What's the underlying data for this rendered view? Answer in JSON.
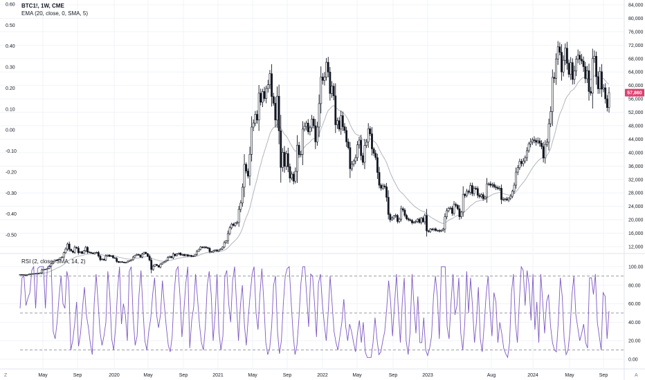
{
  "header": {
    "symbol": "BTC1!, 1W, CME",
    "ema_label": "EMA (20, close, 0, SMA, 5)"
  },
  "rsi": {
    "label": "RSI (2, close, SMA, 14, 2)",
    "axis_ticks": [
      "100.00",
      "80.00",
      "60.00",
      "40.00",
      "20.00",
      "0.00"
    ],
    "levels": [
      90,
      50,
      10
    ],
    "line_color": "#7e57c2",
    "values": [
      55,
      88,
      90,
      58,
      66,
      72,
      96,
      100,
      55,
      98,
      100,
      100,
      100,
      55,
      100,
      100,
      100,
      30,
      22,
      40,
      68,
      90,
      60,
      55,
      95,
      84,
      10,
      20,
      38,
      62,
      14,
      28,
      55,
      78,
      48,
      35,
      18,
      5,
      60,
      92,
      62,
      30,
      15,
      25,
      40,
      95,
      70,
      22,
      10,
      35,
      75,
      100,
      38,
      60,
      48,
      20,
      95,
      100,
      45,
      15,
      25,
      70,
      96,
      55,
      20,
      10,
      30,
      44,
      70,
      88,
      48,
      34,
      48,
      85,
      58,
      35,
      15,
      8,
      25,
      70,
      96,
      100,
      68,
      24,
      52,
      82,
      100,
      12,
      42,
      56,
      92,
      66,
      38,
      18,
      10,
      35,
      80,
      95,
      70,
      20,
      48,
      92,
      30,
      10,
      25,
      90,
      96,
      60,
      40,
      85,
      100,
      60,
      20,
      58,
      80,
      38,
      15,
      45,
      70,
      92,
      100,
      50,
      32,
      70,
      98,
      62,
      18,
      5,
      12,
      35,
      80,
      90,
      30,
      6,
      20,
      60,
      90,
      98,
      100,
      62,
      28,
      5,
      15,
      45,
      82,
      100,
      100,
      68,
      35,
      92,
      90,
      60,
      24,
      82,
      92,
      60,
      38,
      20,
      50,
      90,
      60,
      30,
      18,
      10,
      25,
      40,
      65,
      35,
      20,
      38,
      30,
      18,
      8,
      28,
      42,
      18,
      40,
      8,
      2,
      2,
      2,
      18,
      45,
      22,
      5,
      8,
      20,
      30,
      55,
      85,
      62,
      25,
      58,
      92,
      52,
      18,
      62,
      88,
      20,
      5,
      30,
      92,
      58,
      28,
      68,
      18,
      18,
      45,
      10,
      4,
      12,
      25,
      68,
      90,
      68,
      22,
      100,
      100,
      100,
      35,
      22,
      62,
      92,
      48,
      58,
      88,
      28,
      10,
      38,
      95,
      50,
      88,
      58,
      18,
      40,
      78,
      22,
      8,
      38,
      70,
      90,
      52,
      25,
      72,
      62,
      18,
      40,
      28,
      12,
      6,
      2,
      18,
      72,
      92,
      40,
      18,
      62,
      100,
      96,
      58,
      96,
      80,
      42,
      92,
      32,
      62,
      18,
      92,
      62,
      28,
      62,
      70,
      36,
      18,
      10,
      8,
      40,
      88,
      68,
      22,
      5,
      10,
      30,
      70,
      90,
      48,
      34,
      20,
      28,
      38,
      18,
      12,
      88,
      88,
      70,
      92,
      40,
      25,
      10,
      72,
      68,
      22,
      52
    ]
  },
  "right_axis": {
    "price_ticks": [
      "84,000",
      "80,000",
      "76,000",
      "72,000",
      "68,000",
      "64,000",
      "60,000",
      "56,000",
      "52,000",
      "48,000",
      "44,000",
      "40,000",
      "36,000",
      "32,000",
      "28,000",
      "24,000",
      "20,000",
      "16,000",
      "12,000"
    ],
    "current_price": "57,860",
    "current_price_color": "#e03e6e"
  },
  "left_axis": {
    "ticks": [
      "0.60",
      "0.50",
      "0.40",
      "0.30",
      "0.20",
      "0.10",
      "0.00",
      "-0.10",
      "-0.20",
      "-0.30",
      "-0.40",
      "-0.50"
    ]
  },
  "time_axis": {
    "labels": [
      "May",
      "Sep",
      "2020",
      "May",
      "Sep",
      "2021",
      "May",
      "Sep",
      "2022",
      "May",
      "Sep",
      "2023",
      "Aug",
      "2024",
      "May",
      "Sep"
    ],
    "corner_left": "Z",
    "corner_right": "A"
  },
  "chart_data": {
    "type": "candlestick-ohlc",
    "title": "BTC1!, 1W, CME",
    "timeframe": "1W",
    "x_range": [
      "2019-01",
      "2024-09"
    ],
    "ylim": [
      12000,
      84000
    ],
    "overlay": "EMA (20, close, 0, SMA, 5)",
    "overlay_color": "#b2b5be",
    "bar_color": "#131722",
    "closes_weekly": [
      3700,
      3650,
      3600,
      3580,
      3620,
      3900,
      3850,
      3970,
      4000,
      4100,
      4050,
      4200,
      5100,
      5200,
      5300,
      5500,
      6200,
      6900,
      7500,
      8000,
      7900,
      8200,
      8700,
      8900,
      10200,
      11300,
      12800,
      11200,
      10700,
      10300,
      11800,
      11600,
      10200,
      10500,
      10000,
      10800,
      11800,
      10400,
      10300,
      10100,
      9900,
      10200,
      10300,
      9200,
      8100,
      8300,
      8000,
      9200,
      9500,
      9100,
      9300,
      8700,
      8500,
      7600,
      7300,
      7500,
      7400,
      7200,
      7300,
      7700,
      7800,
      8100,
      8900,
      9400,
      9700,
      9500,
      8900,
      9800,
      10300,
      9900,
      9200,
      8000,
      5200,
      6200,
      6700,
      6400,
      5900,
      6800,
      7200,
      7500,
      7900,
      8800,
      9100,
      8700,
      9800,
      9300,
      9800,
      10100,
      9500,
      9700,
      9300,
      9600,
      9200,
      9400,
      9100,
      9200,
      9700,
      10600,
      11200,
      11900,
      11700,
      11900,
      11700,
      11500,
      10500,
      10400,
      10800,
      11000,
      10700,
      11000,
      11300,
      11900,
      13200,
      13700,
      15900,
      17600,
      18700,
      18300,
      19000,
      19200,
      23100,
      25000,
      29700,
      36500,
      34500,
      33000,
      39500,
      47600,
      48800,
      51400,
      49700,
      57700,
      55000,
      58200,
      56100,
      59100,
      60200,
      63500,
      56700,
      54700,
      49700,
      56800,
      46500,
      35600,
      40100,
      35900,
      39700,
      35800,
      32400,
      33600,
      31500,
      34400,
      42200,
      39400,
      39500,
      47000,
      47800,
      48800,
      46200,
      47400,
      50000,
      48000,
      43200,
      47600,
      54600,
      62500,
      61500,
      62500,
      66900,
      64000,
      57600,
      59800,
      56900,
      48300,
      49500,
      47000,
      51000,
      47700,
      46600,
      43200,
      41500,
      35200,
      36600,
      37500,
      38500,
      42300,
      43700,
      39100,
      37100,
      42100,
      43200,
      47100,
      45600,
      41100,
      39800,
      38500,
      34100,
      30300,
      29400,
      30100,
      29800,
      26700,
      21600,
      20000,
      20500,
      21100,
      21300,
      19500,
      20200,
      23300,
      22900,
      21300,
      20300,
      20000,
      19800,
      19100,
      19300,
      19500,
      20200,
      19200,
      20500,
      19400,
      21300,
      16700,
      16500,
      17200,
      17000,
      17300,
      16800,
      16800,
      16600,
      16900,
      17200,
      20900,
      22700,
      23400,
      23500,
      21900,
      24600,
      24300,
      23300,
      20900,
      22300,
      27600,
      27200,
      28500,
      28200,
      30200,
      27800,
      29400,
      29300,
      27300,
      26900,
      27500,
      26300,
      26800,
      30700,
      30700,
      30300,
      30500,
      29800,
      29600,
      29300,
      29400,
      26000,
      26100,
      26200,
      25900,
      26400,
      27000,
      28500,
      30300,
      34200,
      35500,
      37400,
      36700,
      37500,
      38500,
      40600,
      42600,
      43200,
      43800,
      43600,
      43100,
      43500,
      42800,
      41800,
      38400,
      42400,
      43100,
      48600,
      52200,
      62400,
      62100,
      67900,
      71500,
      69900,
      64000,
      67500,
      71100,
      66600,
      63300,
      66800,
      61800,
      64300,
      67800,
      69000,
      67800,
      67300,
      65600,
      62000,
      64400,
      58200,
      57700,
      68000,
      68700,
      62600,
      59000,
      64100,
      58900,
      59300,
      56000,
      53400,
      57860
    ]
  }
}
